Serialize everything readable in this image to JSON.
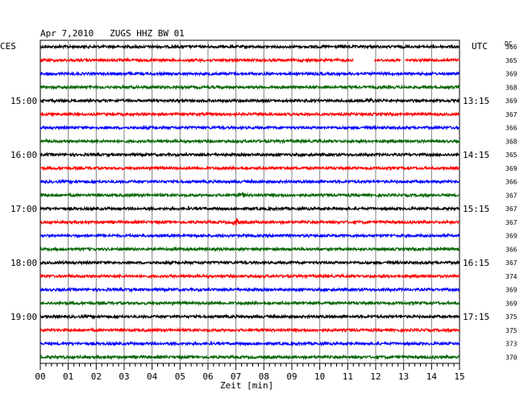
{
  "title": "Apr 7,2010   ZUGS HHZ BW 01",
  "left_timezone": "CES",
  "right_timezone": "UTC",
  "dc_header": "DC",
  "xlabel": "Zeit [min]",
  "colors": {
    "black": "#000000",
    "red": "#ff0000",
    "blue": "#0000ff",
    "green": "#006400"
  },
  "chart_data": {
    "type": "line",
    "title": "Apr 7,2010   ZUGS HHZ BW 01",
    "xlabel": "Zeit [min]",
    "x_ticks": [
      "00",
      "01",
      "02",
      "03",
      "04",
      "05",
      "06",
      "07",
      "08",
      "09",
      "10",
      "11",
      "12",
      "13",
      "14",
      "15"
    ],
    "xlim": [
      0,
      15
    ],
    "grid": true,
    "trace_color_cycle": [
      "black",
      "red",
      "blue",
      "green"
    ],
    "left_hour_labels": [
      {
        "trace": 4,
        "text": "15:00"
      },
      {
        "trace": 8,
        "text": "16:00"
      },
      {
        "trace": 12,
        "text": "17:00"
      },
      {
        "trace": 16,
        "text": "18:00"
      },
      {
        "trace": 20,
        "text": "19:00"
      }
    ],
    "right_hour_labels": [
      {
        "trace": 4,
        "text": "13:15"
      },
      {
        "trace": 8,
        "text": "14:15"
      },
      {
        "trace": 12,
        "text": "15:15"
      },
      {
        "trace": 16,
        "text": "16:15"
      },
      {
        "trace": 20,
        "text": "17:15"
      }
    ],
    "dc_values": [
      "366",
      "365",
      "369",
      "368",
      "369",
      "367",
      "366",
      "368",
      "365",
      "369",
      "366",
      "367",
      "367",
      "367",
      "369",
      "366",
      "367",
      "374",
      "369",
      "369",
      "375",
      "375",
      "373",
      "370"
    ],
    "gaps": [
      {
        "trace": 1,
        "start_min": 11.2,
        "end_min": 11.95
      },
      {
        "trace": 1,
        "start_min": 12.9,
        "end_min": 13.05
      }
    ],
    "events": [
      {
        "trace": 4,
        "min": 11.8,
        "amp": 2.0
      },
      {
        "trace": 11,
        "min": 7.2,
        "amp": 2.5
      },
      {
        "trace": 13,
        "min": 7.0,
        "amp": 4.0
      }
    ]
  }
}
